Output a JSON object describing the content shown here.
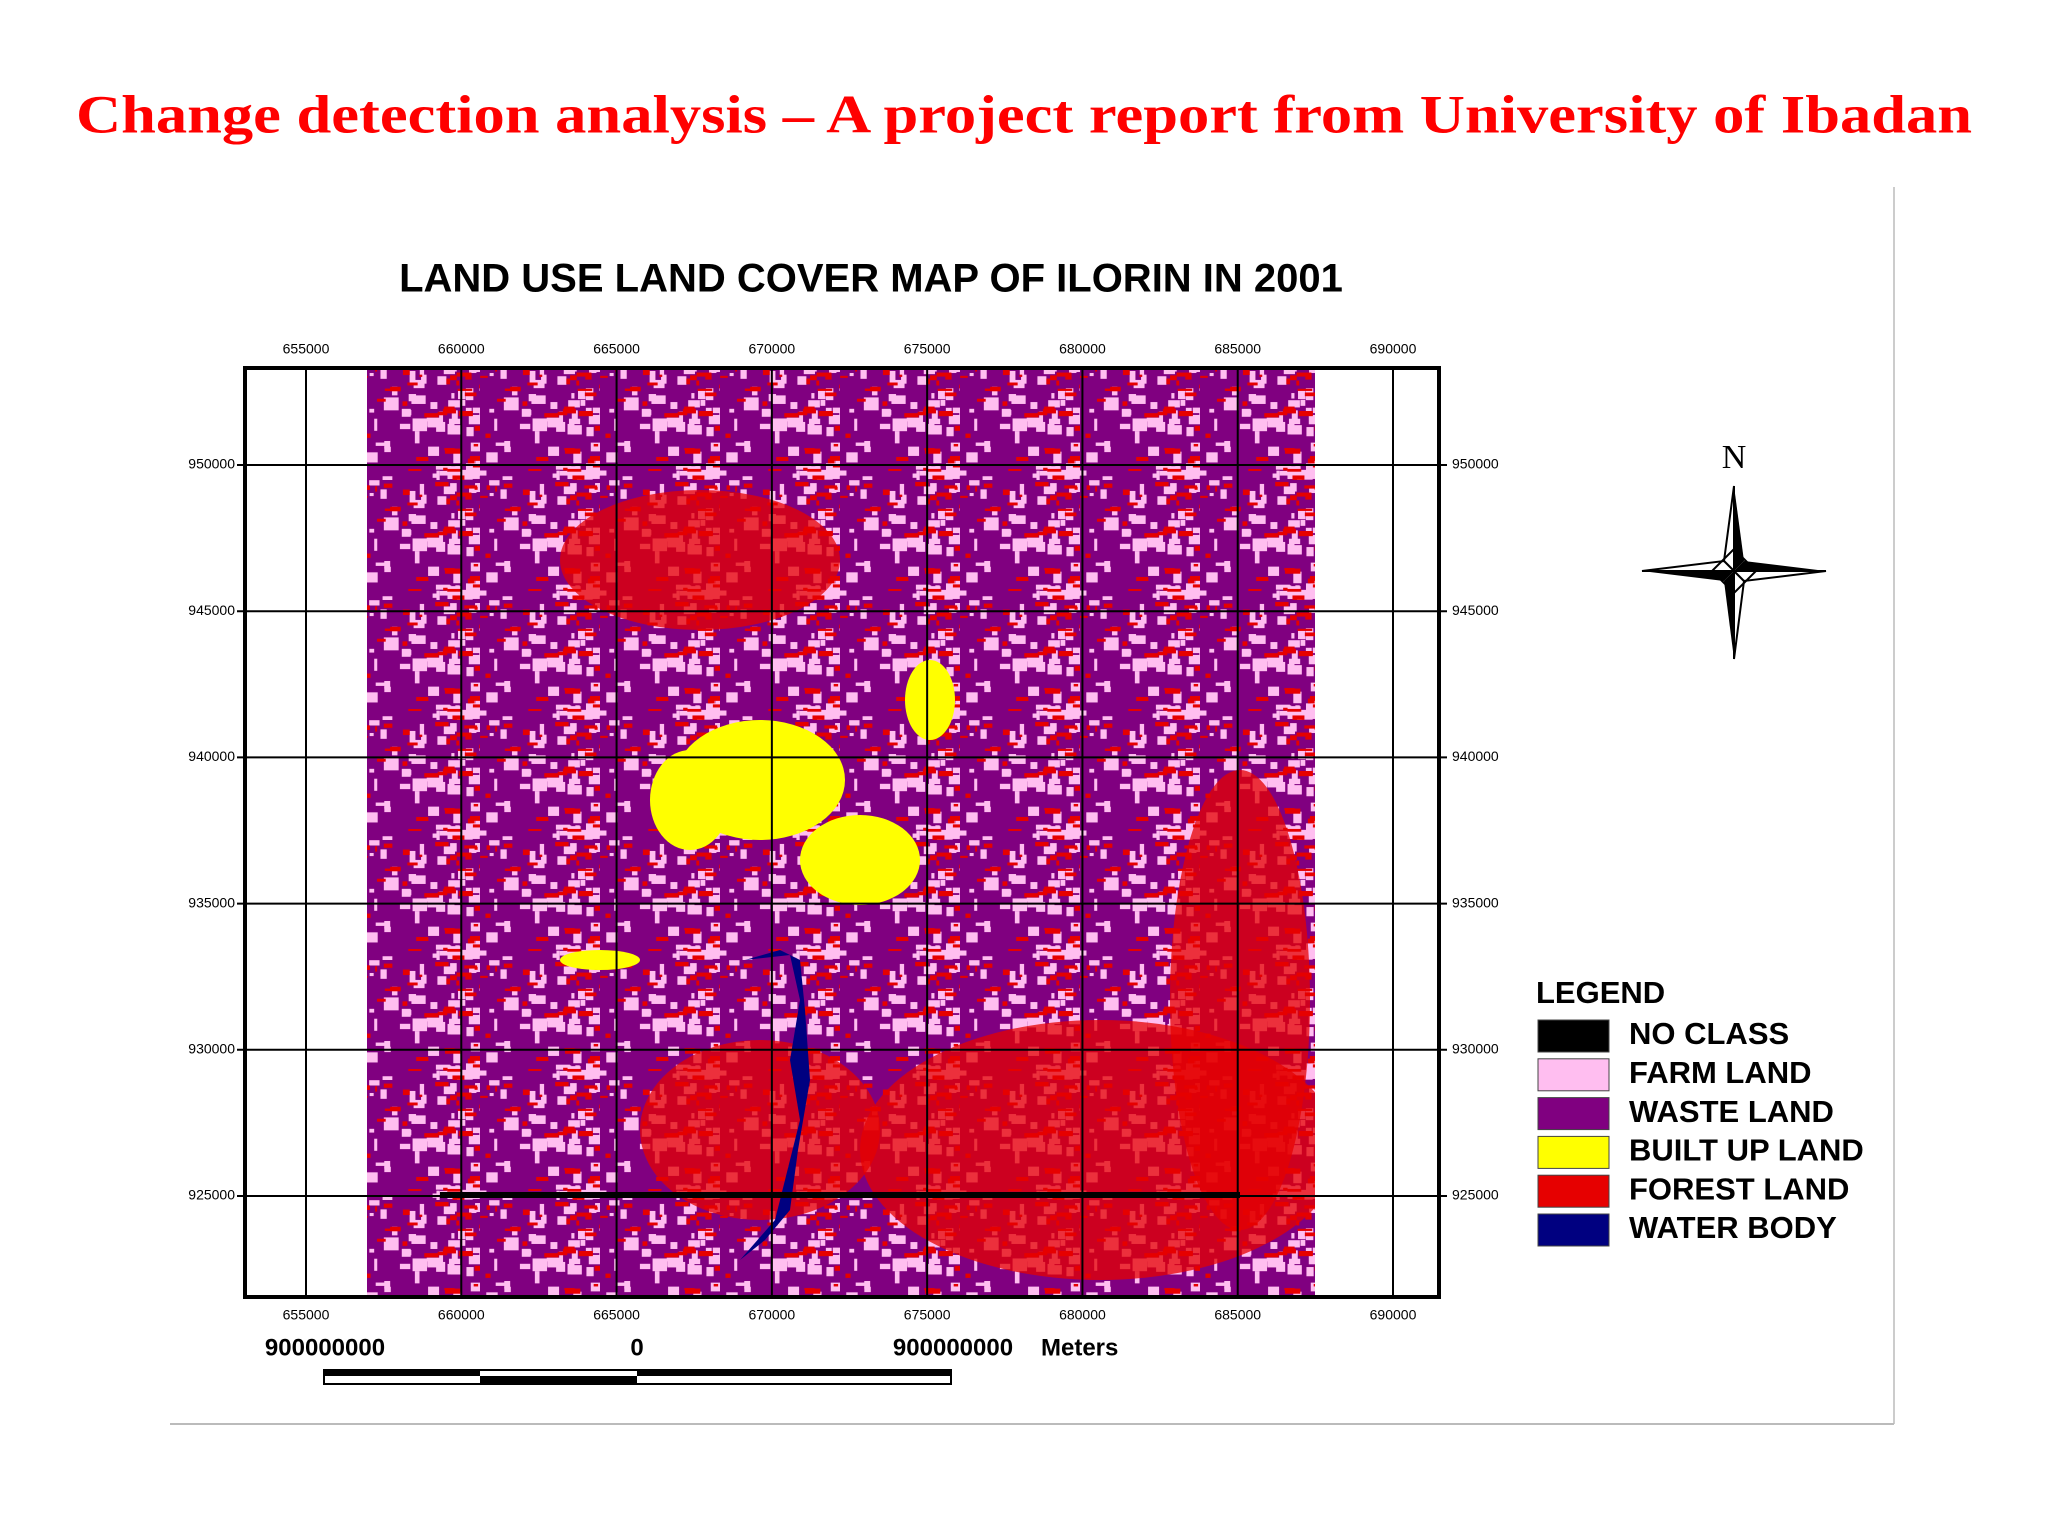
{
  "header": {
    "title": "Change detection analysis – A project report from University of Ibadan"
  },
  "map": {
    "title": "LAND USE LAND COVER MAP OF ILORIN IN 2001",
    "x_ticks": [
      655000,
      660000,
      665000,
      670000,
      675000,
      680000,
      685000,
      690000
    ],
    "y_ticks": [
      950000,
      945000,
      940000,
      935000,
      930000,
      925000
    ],
    "north_label": "N",
    "legend": {
      "title": "LEGEND",
      "items": [
        {
          "label": "NO CLASS",
          "color": "#000000"
        },
        {
          "label": "FARM LAND",
          "color": "#ffbef0"
        },
        {
          "label": "WASTE LAND",
          "color": "#800080"
        },
        {
          "label": "BUILT UP LAND",
          "color": "#ffff00"
        },
        {
          "label": "FOREST LAND",
          "color": "#e60000"
        },
        {
          "label": "WATER BODY",
          "color": "#000080"
        }
      ]
    },
    "scale_bar": {
      "labels": [
        "900000000",
        "0",
        "900000000"
      ],
      "unit": "Meters"
    }
  }
}
